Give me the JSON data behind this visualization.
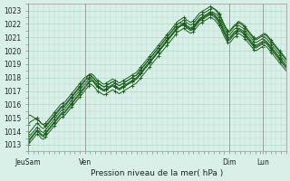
{
  "xlabel": "Pression niveau de la mer( hPa )",
  "ylim": [
    1012.5,
    1023.5
  ],
  "yticks": [
    1013,
    1014,
    1015,
    1016,
    1017,
    1018,
    1019,
    1020,
    1021,
    1022,
    1023
  ],
  "x_tick_labels": [
    "JeuSam",
    "Ven",
    "Dim",
    "Lun"
  ],
  "x_tick_positions": [
    0,
    0.22,
    0.78,
    0.91
  ],
  "bg_color": "#d8f0e8",
  "grid_color": "#b0d8c8",
  "line_color": "#1a5c1a",
  "total_points": 120,
  "series": [
    [
      1013.5,
      1013.7,
      1013.9,
      1014.1,
      1014.3,
      1014.2,
      1014.0,
      1013.9,
      1014.1,
      1014.3,
      1014.5,
      1014.7,
      1014.9,
      1015.1,
      1015.3,
      1015.5,
      1015.6,
      1015.7,
      1015.9,
      1016.1,
      1016.3,
      1016.5,
      1016.7,
      1016.9,
      1017.1,
      1017.3,
      1017.5,
      1017.7,
      1017.9,
      1018.1,
      1018.0,
      1017.8,
      1017.6,
      1017.5,
      1017.4,
      1017.3,
      1017.4,
      1017.5,
      1017.6,
      1017.7,
      1017.6,
      1017.5,
      1017.4,
      1017.5,
      1017.6,
      1017.7,
      1017.8,
      1017.9,
      1018.0,
      1018.1,
      1018.2,
      1018.4,
      1018.6,
      1018.8,
      1019.0,
      1019.2,
      1019.4,
      1019.6,
      1019.8,
      1020.0,
      1020.2,
      1020.4,
      1020.6,
      1020.8,
      1021.0,
      1021.2,
      1021.4,
      1021.6,
      1021.8,
      1022.0,
      1022.1,
      1022.2,
      1022.3,
      1022.1,
      1022.0,
      1021.9,
      1022.0,
      1022.2,
      1022.4,
      1022.6,
      1022.7,
      1022.8,
      1022.9,
      1023.0,
      1023.1,
      1023.2,
      1023.1,
      1023.0,
      1022.8,
      1022.5,
      1022.1,
      1021.8,
      1021.5,
      1021.5,
      1021.7,
      1021.9,
      1022.0,
      1022.2,
      1022.1,
      1022.0,
      1021.8,
      1021.6,
      1021.4,
      1021.2,
      1021.0,
      1020.9,
      1021.0,
      1021.1,
      1021.2,
      1021.3,
      1021.2,
      1021.0,
      1020.8,
      1020.6,
      1020.4,
      1020.2,
      1020.0,
      1019.8,
      1019.6,
      1019.4
    ],
    [
      1013.2,
      1013.4,
      1013.6,
      1013.8,
      1014.0,
      1013.9,
      1013.7,
      1013.6,
      1013.8,
      1014.0,
      1014.2,
      1014.4,
      1014.6,
      1014.8,
      1015.0,
      1015.2,
      1015.3,
      1015.4,
      1015.6,
      1015.8,
      1016.0,
      1016.2,
      1016.4,
      1016.6,
      1016.8,
      1017.0,
      1017.2,
      1017.4,
      1017.6,
      1017.8,
      1017.7,
      1017.5,
      1017.3,
      1017.2,
      1017.1,
      1017.0,
      1017.1,
      1017.2,
      1017.3,
      1017.4,
      1017.3,
      1017.2,
      1017.1,
      1017.2,
      1017.3,
      1017.4,
      1017.5,
      1017.6,
      1017.7,
      1017.8,
      1017.9,
      1018.1,
      1018.3,
      1018.5,
      1018.7,
      1018.9,
      1019.1,
      1019.3,
      1019.5,
      1019.7,
      1019.9,
      1020.1,
      1020.3,
      1020.5,
      1020.7,
      1020.9,
      1021.1,
      1021.3,
      1021.5,
      1021.7,
      1021.8,
      1021.9,
      1022.0,
      1021.8,
      1021.7,
      1021.6,
      1021.7,
      1021.9,
      1022.1,
      1022.3,
      1022.4,
      1022.5,
      1022.6,
      1022.7,
      1022.8,
      1022.9,
      1022.8,
      1022.7,
      1022.5,
      1022.2,
      1021.8,
      1021.5,
      1021.2,
      1021.2,
      1021.4,
      1021.6,
      1021.7,
      1021.9,
      1021.8,
      1021.7,
      1021.5,
      1021.3,
      1021.1,
      1020.9,
      1020.7,
      1020.6,
      1020.7,
      1020.8,
      1020.9,
      1021.0,
      1020.9,
      1020.7,
      1020.5,
      1020.3,
      1020.1,
      1019.9,
      1019.7,
      1019.5,
      1019.3,
      1019.1
    ],
    [
      1013.8,
      1014.0,
      1014.2,
      1014.4,
      1014.6,
      1014.5,
      1014.3,
      1014.2,
      1014.4,
      1014.6,
      1014.8,
      1015.0,
      1015.2,
      1015.4,
      1015.6,
      1015.8,
      1015.9,
      1016.0,
      1016.2,
      1016.4,
      1016.6,
      1016.8,
      1017.0,
      1017.2,
      1017.4,
      1017.6,
      1017.8,
      1018.0,
      1018.2,
      1018.3,
      1018.2,
      1018.0,
      1017.8,
      1017.7,
      1017.6,
      1017.5,
      1017.6,
      1017.7,
      1017.8,
      1017.9,
      1017.8,
      1017.7,
      1017.6,
      1017.7,
      1017.8,
      1017.9,
      1018.0,
      1018.1,
      1018.2,
      1018.3,
      1018.4,
      1018.6,
      1018.8,
      1019.0,
      1019.2,
      1019.4,
      1019.6,
      1019.8,
      1020.0,
      1020.2,
      1020.4,
      1020.6,
      1020.8,
      1021.0,
      1021.2,
      1021.4,
      1021.6,
      1021.8,
      1022.0,
      1022.2,
      1022.3,
      1022.4,
      1022.5,
      1022.3,
      1022.2,
      1022.1,
      1022.2,
      1022.4,
      1022.6,
      1022.8,
      1022.9,
      1023.0,
      1023.1,
      1023.2,
      1023.3,
      1023.2,
      1023.1,
      1022.9,
      1022.7,
      1022.4,
      1022.0,
      1021.7,
      1021.4,
      1021.4,
      1021.6,
      1021.8,
      1021.9,
      1022.1,
      1022.0,
      1021.9,
      1021.7,
      1021.5,
      1021.3,
      1021.1,
      1020.9,
      1020.8,
      1020.9,
      1021.0,
      1021.1,
      1021.2,
      1021.1,
      1020.9,
      1020.7,
      1020.5,
      1020.3,
      1020.1,
      1019.9,
      1019.7,
      1019.5,
      1019.3
    ],
    [
      1014.5,
      1014.7,
      1014.8,
      1014.9,
      1015.0,
      1014.8,
      1014.6,
      1014.5,
      1014.6,
      1014.8,
      1015.0,
      1015.2,
      1015.4,
      1015.6,
      1015.8,
      1016.0,
      1016.1,
      1016.2,
      1016.4,
      1016.6,
      1016.8,
      1017.0,
      1017.2,
      1017.4,
      1017.6,
      1017.8,
      1018.0,
      1018.1,
      1018.2,
      1018.2,
      1018.0,
      1017.8,
      1017.6,
      1017.5,
      1017.4,
      1017.3,
      1017.4,
      1017.5,
      1017.6,
      1017.7,
      1017.6,
      1017.5,
      1017.4,
      1017.5,
      1017.6,
      1017.7,
      1017.8,
      1017.9,
      1018.0,
      1018.1,
      1018.2,
      1018.4,
      1018.6,
      1018.8,
      1019.0,
      1019.2,
      1019.4,
      1019.6,
      1019.8,
      1020.0,
      1020.2,
      1020.4,
      1020.6,
      1020.8,
      1021.0,
      1021.2,
      1021.4,
      1021.6,
      1021.8,
      1022.0,
      1022.1,
      1022.0,
      1021.9,
      1021.7,
      1021.6,
      1021.5,
      1021.6,
      1021.8,
      1022.0,
      1022.2,
      1022.3,
      1022.4,
      1022.5,
      1022.6,
      1022.7,
      1022.6,
      1022.5,
      1022.3,
      1022.1,
      1021.8,
      1021.4,
      1021.1,
      1020.8,
      1020.8,
      1021.0,
      1021.2,
      1021.3,
      1021.5,
      1021.4,
      1021.3,
      1021.1,
      1020.9,
      1020.7,
      1020.5,
      1020.3,
      1020.2,
      1020.3,
      1020.4,
      1020.5,
      1020.6,
      1020.5,
      1020.3,
      1020.1,
      1019.9,
      1019.7,
      1019.5,
      1019.3,
      1019.1,
      1018.9,
      1018.7
    ],
    [
      1013.0,
      1013.2,
      1013.4,
      1013.6,
      1013.8,
      1013.7,
      1013.5,
      1013.4,
      1013.6,
      1013.8,
      1014.0,
      1014.2,
      1014.4,
      1014.6,
      1014.8,
      1015.0,
      1015.1,
      1015.2,
      1015.4,
      1015.6,
      1015.8,
      1016.0,
      1016.2,
      1016.4,
      1016.6,
      1016.8,
      1017.0,
      1017.2,
      1017.4,
      1017.5,
      1017.4,
      1017.2,
      1017.0,
      1016.9,
      1016.8,
      1016.7,
      1016.8,
      1016.9,
      1017.0,
      1017.1,
      1017.0,
      1016.9,
      1016.8,
      1016.9,
      1017.0,
      1017.1,
      1017.2,
      1017.3,
      1017.4,
      1017.5,
      1017.6,
      1017.8,
      1018.0,
      1018.2,
      1018.4,
      1018.6,
      1018.8,
      1019.0,
      1019.2,
      1019.4,
      1019.6,
      1019.8,
      1020.0,
      1020.2,
      1020.4,
      1020.6,
      1020.8,
      1021.0,
      1021.2,
      1021.4,
      1021.5,
      1021.6,
      1021.7,
      1021.5,
      1021.4,
      1021.3,
      1021.4,
      1021.6,
      1021.8,
      1022.0,
      1022.1,
      1022.2,
      1022.3,
      1022.4,
      1022.5,
      1022.4,
      1022.3,
      1022.1,
      1021.9,
      1021.6,
      1021.2,
      1020.9,
      1020.6,
      1020.6,
      1020.8,
      1021.0,
      1021.1,
      1021.3,
      1021.2,
      1021.1,
      1020.9,
      1020.7,
      1020.5,
      1020.3,
      1020.1,
      1020.0,
      1020.1,
      1020.2,
      1020.3,
      1020.4,
      1020.3,
      1020.1,
      1019.9,
      1019.7,
      1019.5,
      1019.3,
      1019.1,
      1018.9,
      1018.7,
      1018.5
    ],
    [
      1013.3,
      1013.5,
      1013.7,
      1013.9,
      1014.1,
      1014.0,
      1013.8,
      1013.7,
      1013.9,
      1014.1,
      1014.3,
      1014.5,
      1014.7,
      1014.9,
      1015.1,
      1015.3,
      1015.4,
      1015.5,
      1015.7,
      1015.9,
      1016.1,
      1016.3,
      1016.5,
      1016.7,
      1016.9,
      1017.1,
      1017.3,
      1017.5,
      1017.7,
      1017.8,
      1017.7,
      1017.5,
      1017.3,
      1017.2,
      1017.1,
      1017.0,
      1017.1,
      1017.2,
      1017.3,
      1017.4,
      1017.3,
      1017.2,
      1017.1,
      1017.2,
      1017.3,
      1017.4,
      1017.5,
      1017.6,
      1017.7,
      1017.8,
      1017.9,
      1018.1,
      1018.3,
      1018.5,
      1018.7,
      1018.9,
      1019.1,
      1019.3,
      1019.5,
      1019.7,
      1019.9,
      1020.1,
      1020.3,
      1020.5,
      1020.7,
      1020.9,
      1021.1,
      1021.3,
      1021.5,
      1021.7,
      1021.8,
      1021.9,
      1022.0,
      1021.8,
      1021.7,
      1021.6,
      1021.7,
      1021.9,
      1022.1,
      1022.3,
      1022.4,
      1022.5,
      1022.6,
      1022.7,
      1022.8,
      1022.7,
      1022.6,
      1022.4,
      1022.2,
      1021.9,
      1021.5,
      1021.2,
      1020.9,
      1020.9,
      1021.1,
      1021.3,
      1021.4,
      1021.6,
      1021.5,
      1021.4,
      1021.2,
      1021.0,
      1020.8,
      1020.6,
      1020.4,
      1020.3,
      1020.4,
      1020.5,
      1020.6,
      1020.7,
      1020.6,
      1020.4,
      1020.2,
      1020.0,
      1019.8,
      1019.6,
      1019.4,
      1019.2,
      1019.0,
      1018.8
    ],
    [
      1015.2,
      1015.2,
      1015.1,
      1015.0,
      1014.9,
      1014.8,
      1014.6,
      1014.5,
      1014.4,
      1014.5,
      1014.7,
      1014.9,
      1015.1,
      1015.3,
      1015.5,
      1015.7,
      1015.8,
      1015.9,
      1016.1,
      1016.3,
      1016.5,
      1016.7,
      1016.9,
      1017.1,
      1017.3,
      1017.5,
      1017.7,
      1017.9,
      1018.0,
      1018.0,
      1017.8,
      1017.6,
      1017.4,
      1017.3,
      1017.2,
      1017.1,
      1017.2,
      1017.3,
      1017.4,
      1017.5,
      1017.4,
      1017.3,
      1017.2,
      1017.3,
      1017.4,
      1017.5,
      1017.6,
      1017.7,
      1017.8,
      1017.9,
      1018.0,
      1018.2,
      1018.4,
      1018.6,
      1018.8,
      1019.0,
      1019.2,
      1019.4,
      1019.6,
      1019.8,
      1020.0,
      1020.2,
      1020.4,
      1020.6,
      1020.8,
      1021.0,
      1021.2,
      1021.4,
      1021.6,
      1021.8,
      1021.9,
      1022.0,
      1022.1,
      1021.9,
      1021.8,
      1021.7,
      1021.8,
      1022.0,
      1022.2,
      1022.4,
      1022.5,
      1022.6,
      1022.7,
      1022.8,
      1022.9,
      1022.8,
      1022.7,
      1022.5,
      1022.3,
      1022.0,
      1021.6,
      1021.3,
      1021.0,
      1021.0,
      1021.2,
      1021.4,
      1021.5,
      1021.7,
      1021.6,
      1021.5,
      1021.3,
      1021.1,
      1020.9,
      1020.7,
      1020.5,
      1020.4,
      1020.5,
      1020.6,
      1020.7,
      1020.8,
      1020.7,
      1020.5,
      1020.3,
      1020.1,
      1019.9,
      1019.7,
      1019.5,
      1019.3,
      1019.1,
      1018.9
    ]
  ]
}
